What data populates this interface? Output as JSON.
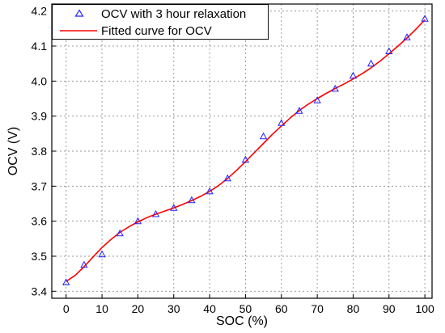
{
  "chart_data": {
    "type": "scatter",
    "xlabel": "SOC (%)",
    "ylabel": "OCV (V)",
    "xlim": [
      -4,
      102
    ],
    "ylim": [
      3.38,
      4.22
    ],
    "x_ticks": [
      0,
      10,
      20,
      30,
      40,
      50,
      60,
      70,
      80,
      90,
      100
    ],
    "y_ticks": [
      3.4,
      3.5,
      3.6,
      3.7,
      3.8,
      3.9,
      4.0,
      4.1,
      4.2
    ],
    "grid": true,
    "legend_position": "top-left",
    "series": [
      {
        "name": "OCV with 3 hour relaxation",
        "type": "scatter",
        "marker": "triangle",
        "color": "#2222ff",
        "x": [
          0,
          5,
          10,
          15,
          20,
          25,
          30,
          35,
          40,
          45,
          50,
          55,
          60,
          65,
          70,
          75,
          80,
          85,
          90,
          95,
          100
        ],
        "y": [
          3.425,
          3.475,
          3.505,
          3.565,
          3.6,
          3.62,
          3.638,
          3.66,
          3.685,
          3.722,
          3.775,
          3.842,
          3.88,
          3.915,
          3.945,
          3.978,
          4.015,
          4.05,
          4.085,
          4.125,
          4.178
        ]
      },
      {
        "name": "Fitted curve for OCV",
        "type": "line",
        "color": "#ff0000",
        "x": [
          0,
          2.5,
          5,
          7.5,
          10,
          12.5,
          15,
          17.5,
          20,
          22.5,
          25,
          27.5,
          30,
          32.5,
          35,
          37.5,
          40,
          42.5,
          45,
          47.5,
          50,
          52.5,
          55,
          57.5,
          60,
          62.5,
          65,
          67.5,
          70,
          72.5,
          75,
          77.5,
          80,
          82.5,
          85,
          87.5,
          90,
          92.5,
          95,
          97.5,
          100
        ],
        "y": [
          3.428,
          3.445,
          3.47,
          3.498,
          3.525,
          3.548,
          3.568,
          3.584,
          3.598,
          3.61,
          3.62,
          3.629,
          3.638,
          3.648,
          3.659,
          3.671,
          3.685,
          3.702,
          3.722,
          3.745,
          3.77,
          3.796,
          3.822,
          3.848,
          3.872,
          3.895,
          3.916,
          3.934,
          3.95,
          3.965,
          3.979,
          3.992,
          4.006,
          4.021,
          4.038,
          4.057,
          4.078,
          4.1,
          4.123,
          4.148,
          4.175
        ]
      }
    ]
  }
}
